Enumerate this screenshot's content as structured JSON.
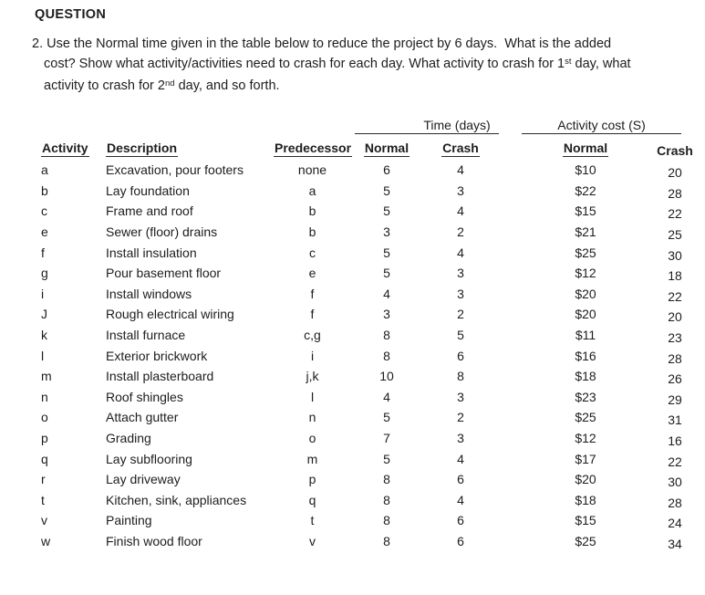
{
  "heading": "QUESTION",
  "question": {
    "lines": [
      {
        "pre": "2. Use the Normal time given in the table below to reduce the project by 6 days.  What is the added"
      },
      {
        "pre": "cost? Show what activity/activities need to crash for each day. What activity to crash for 1",
        "sup": "st",
        "post": " day, what"
      },
      {
        "pre": "activity to crash for 2",
        "sup": "nd",
        "post": " day, and so forth."
      }
    ]
  },
  "table": {
    "group_headers": {
      "time": "Time (days)",
      "cost": "Activity cost (S)"
    },
    "columns": {
      "activity": "Activity",
      "description": "Description",
      "predecessor": "Predecessor",
      "normal_time": "Normal",
      "crash_time": "Crash",
      "normal_cost": "Normal",
      "crash_cost": "Crash"
    },
    "rows": [
      {
        "activity": "a",
        "description": "Excavation, pour footers",
        "predecessor": "none",
        "normal_time": "6",
        "crash_time": "4",
        "normal_cost": "$10",
        "crash_cost": "20"
      },
      {
        "activity": "b",
        "description": "Lay foundation",
        "predecessor": "a",
        "normal_time": "5",
        "crash_time": "3",
        "normal_cost": "$22",
        "crash_cost": "28"
      },
      {
        "activity": "c",
        "description": "Frame and roof",
        "predecessor": "b",
        "normal_time": "5",
        "crash_time": "4",
        "normal_cost": "$15",
        "crash_cost": "22"
      },
      {
        "activity": "e",
        "description": "Sewer (floor) drains",
        "predecessor": "b",
        "normal_time": "3",
        "crash_time": "2",
        "normal_cost": "$21",
        "crash_cost": "25"
      },
      {
        "activity": "f",
        "description": "Install insulation",
        "predecessor": "c",
        "normal_time": "5",
        "crash_time": "4",
        "normal_cost": "$25",
        "crash_cost": "30"
      },
      {
        "activity": "g",
        "description": "Pour basement floor",
        "predecessor": "e",
        "normal_time": "5",
        "crash_time": "3",
        "normal_cost": "$12",
        "crash_cost": "18"
      },
      {
        "activity": "i",
        "description": "Install windows",
        "predecessor": "f",
        "normal_time": "4",
        "crash_time": "3",
        "normal_cost": "$20",
        "crash_cost": "22"
      },
      {
        "activity": "J",
        "description": "Rough electrical wiring",
        "predecessor": "f",
        "normal_time": "3",
        "crash_time": "2",
        "normal_cost": "$20",
        "crash_cost": "20"
      },
      {
        "activity": "k",
        "description": "Install furnace",
        "predecessor": "c,g",
        "normal_time": "8",
        "crash_time": "5",
        "normal_cost": "$11",
        "crash_cost": "23"
      },
      {
        "activity": "l",
        "description": "Exterior brickwork",
        "predecessor": "i",
        "normal_time": "8",
        "crash_time": "6",
        "normal_cost": "$16",
        "crash_cost": "28"
      },
      {
        "activity": "m",
        "description": "Install plasterboard",
        "predecessor": "j,k",
        "normal_time": "10",
        "crash_time": "8",
        "normal_cost": "$18",
        "crash_cost": "26"
      },
      {
        "activity": "n",
        "description": "Roof shingles",
        "predecessor": "l",
        "normal_time": "4",
        "crash_time": "3",
        "normal_cost": "$23",
        "crash_cost": "29"
      },
      {
        "activity": "o",
        "description": "Attach gutter",
        "predecessor": "n",
        "normal_time": "5",
        "crash_time": "2",
        "normal_cost": "$25",
        "crash_cost": "31"
      },
      {
        "activity": "p",
        "description": "Grading",
        "predecessor": "o",
        "normal_time": "7",
        "crash_time": "3",
        "normal_cost": "$12",
        "crash_cost": "16"
      },
      {
        "activity": "q",
        "description": "Lay subflooring",
        "predecessor": "m",
        "normal_time": "5",
        "crash_time": "4",
        "normal_cost": "$17",
        "crash_cost": "22"
      },
      {
        "activity": "r",
        "description": "Lay driveway",
        "predecessor": "p",
        "normal_time": "8",
        "crash_time": "6",
        "normal_cost": "$20",
        "crash_cost": "30"
      },
      {
        "activity": "t",
        "description": "Kitchen, sink, appliances",
        "predecessor": "q",
        "normal_time": "8",
        "crash_time": "4",
        "normal_cost": "$18",
        "crash_cost": "28"
      },
      {
        "activity": "v",
        "description": "Painting",
        "predecessor": "t",
        "normal_time": "8",
        "crash_time": "6",
        "normal_cost": "$15",
        "crash_cost": "24"
      },
      {
        "activity": "w",
        "description": "Finish wood floor",
        "predecessor": "v",
        "normal_time": "8",
        "crash_time": "6",
        "normal_cost": "$25",
        "crash_cost": "34"
      }
    ]
  }
}
